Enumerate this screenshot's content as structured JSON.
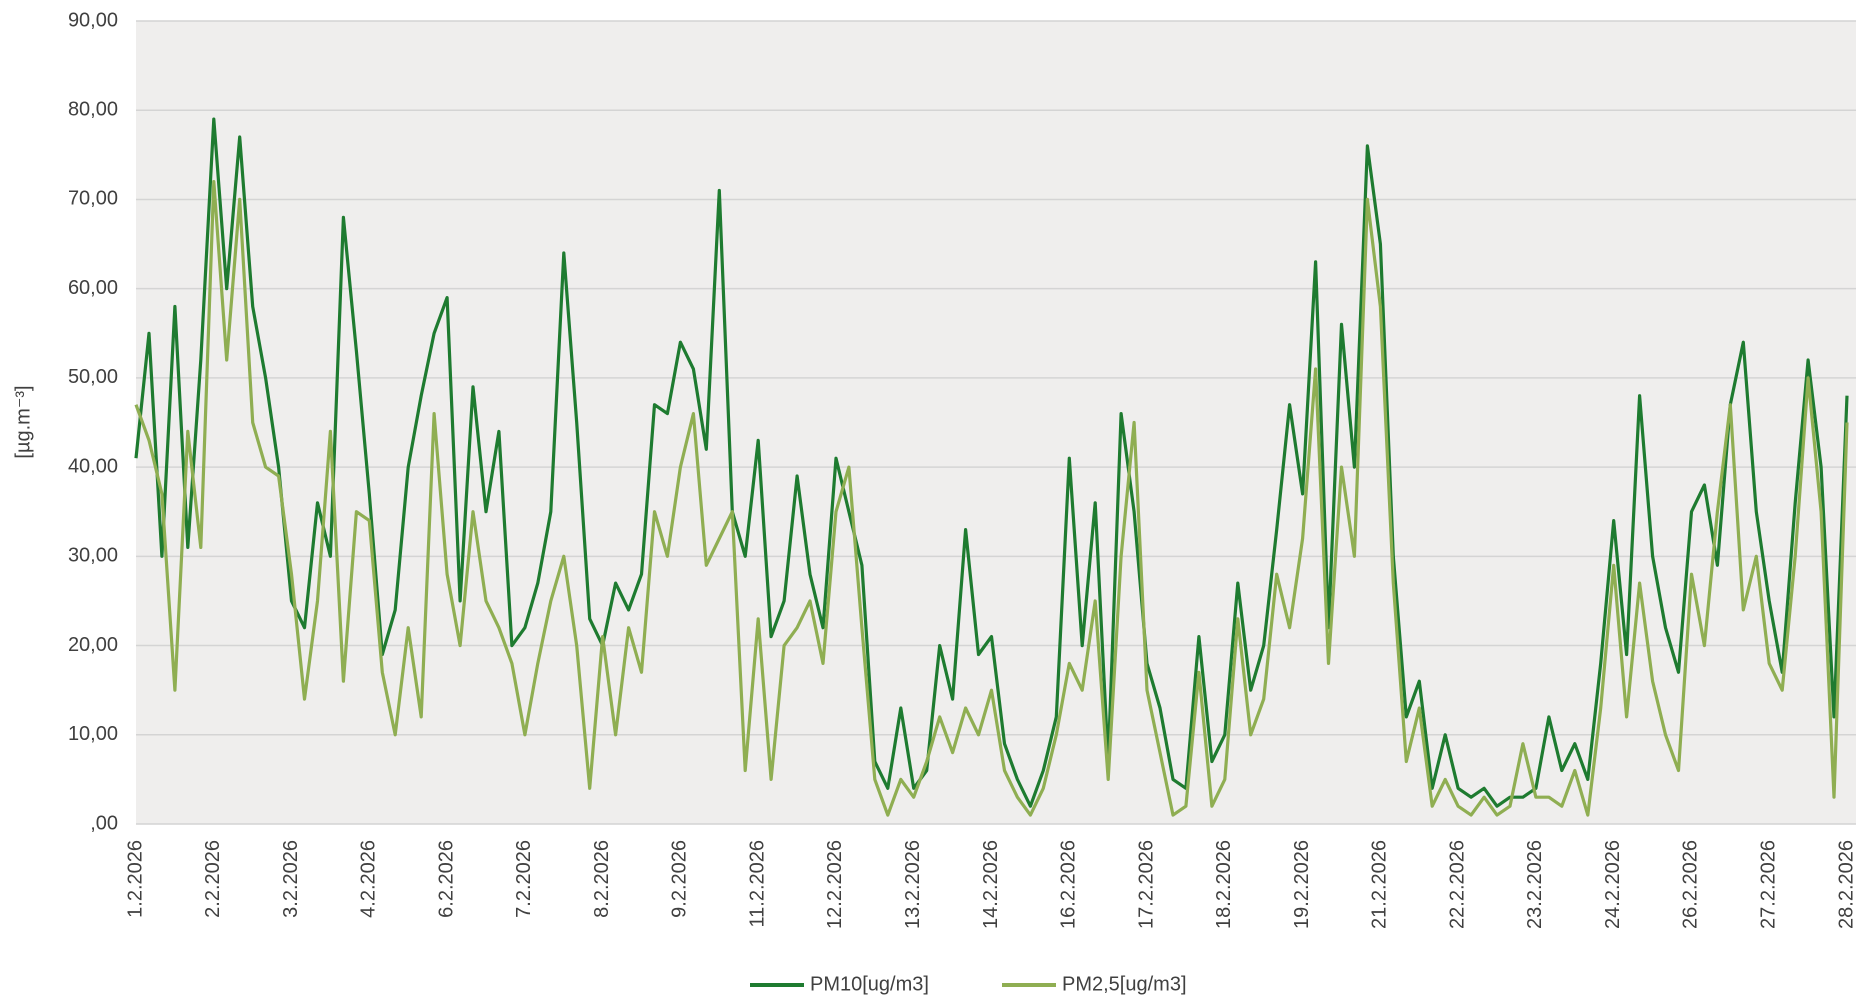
{
  "chart_data": {
    "type": "line",
    "y_label": "[µg.m⁻³]",
    "categories": [
      "1.2.2026",
      null,
      null,
      null,
      null,
      null,
      "2.2.2026",
      null,
      null,
      null,
      null,
      null,
      "3.2.2026",
      null,
      null,
      null,
      null,
      null,
      "4.2.2026",
      null,
      null,
      null,
      null,
      null,
      "6.2.2026",
      null,
      null,
      null,
      null,
      null,
      "7.2.2026",
      null,
      null,
      null,
      null,
      null,
      "8.2.2026",
      null,
      null,
      null,
      null,
      null,
      "9.2.2026",
      null,
      null,
      null,
      null,
      null,
      "11.2.2026",
      null,
      null,
      null,
      null,
      null,
      "12.2.2026",
      null,
      null,
      null,
      null,
      null,
      "13.2.2026",
      null,
      null,
      null,
      null,
      null,
      "14.2.2026",
      null,
      null,
      null,
      null,
      null,
      "16.2.2026",
      null,
      null,
      null,
      null,
      null,
      "17.2.2026",
      null,
      null,
      null,
      null,
      null,
      "18.2.2026",
      null,
      null,
      null,
      null,
      null,
      "19.2.2026",
      null,
      null,
      null,
      null,
      null,
      "21.2.2026",
      null,
      null,
      null,
      null,
      null,
      "22.2.2026",
      null,
      null,
      null,
      null,
      null,
      "23.2.2026",
      null,
      null,
      null,
      null,
      null,
      "24.2.2026",
      null,
      null,
      null,
      null,
      null,
      "26.2.2026",
      null,
      null,
      null,
      null,
      null,
      "27.2.2026",
      null,
      null,
      null,
      null,
      null,
      "28.2.2026"
    ],
    "series": [
      {
        "name": "PM10[ug/m3]",
        "color": "#1e7b30",
        "values": [
          41,
          55,
          30,
          58,
          31,
          52,
          79,
          60,
          77,
          58,
          50,
          40,
          25,
          22,
          36,
          30,
          68,
          53,
          37,
          19,
          24,
          40,
          48,
          55,
          59,
          25,
          49,
          35,
          44,
          20,
          22,
          27,
          35,
          64,
          45,
          23,
          20,
          27,
          24,
          28,
          47,
          46,
          54,
          51,
          42,
          71,
          35,
          30,
          43,
          21,
          25,
          39,
          28,
          22,
          41,
          35,
          29,
          7,
          4,
          13,
          4,
          6,
          20,
          14,
          33,
          19,
          21,
          9,
          5,
          2,
          6,
          12,
          41,
          20,
          36,
          7,
          46,
          35,
          18,
          13,
          5,
          4,
          21,
          7,
          10,
          27,
          15,
          20,
          33,
          47,
          37,
          63,
          22,
          56,
          40,
          76,
          65,
          30,
          12,
          16,
          4,
          10,
          4,
          3,
          4,
          2,
          3,
          3,
          4,
          12,
          6,
          9,
          5,
          18,
          34,
          19,
          48,
          30,
          22,
          17,
          35,
          38,
          29,
          47,
          54,
          35,
          25,
          17,
          36,
          52,
          40,
          12,
          48
        ]
      },
      {
        "name": "PM2,5[ug/m3]",
        "color": "#8fae52",
        "values": [
          47,
          43,
          37,
          15,
          44,
          31,
          72,
          52,
          70,
          45,
          40,
          39,
          28,
          14,
          25,
          44,
          16,
          35,
          34,
          17,
          10,
          22,
          12,
          46,
          28,
          20,
          35,
          25,
          22,
          18,
          10,
          18,
          25,
          30,
          20,
          4,
          21,
          10,
          22,
          17,
          35,
          30,
          40,
          46,
          29,
          32,
          35,
          6,
          23,
          5,
          20,
          22,
          25,
          18,
          35,
          40,
          22,
          5,
          1,
          5,
          3,
          7,
          12,
          8,
          13,
          10,
          15,
          6,
          3,
          1,
          4,
          10,
          18,
          15,
          25,
          5,
          30,
          45,
          15,
          8,
          1,
          2,
          17,
          2,
          5,
          23,
          10,
          14,
          28,
          22,
          32,
          51,
          18,
          40,
          30,
          70,
          58,
          27,
          7,
          13,
          2,
          5,
          2,
          1,
          3,
          1,
          2,
          9,
          3,
          3,
          2,
          6,
          1,
          13,
          29,
          12,
          27,
          16,
          10,
          6,
          28,
          20,
          35,
          47,
          24,
          30,
          18,
          15,
          30,
          50,
          35,
          3,
          45
        ]
      }
    ],
    "ylim": [
      0,
      90
    ],
    "yticks": [
      {
        "value": 0,
        "label": ",00"
      },
      {
        "value": 10,
        "label": "10,00"
      },
      {
        "value": 20,
        "label": "20,00"
      },
      {
        "value": 30,
        "label": "30,00"
      },
      {
        "value": 40,
        "label": "40,00"
      },
      {
        "value": 50,
        "label": "50,00"
      },
      {
        "value": 60,
        "label": "60,00"
      },
      {
        "value": 70,
        "label": "70,00"
      },
      {
        "value": 80,
        "label": "80,00"
      },
      {
        "value": 90,
        "label": "90,00"
      }
    ],
    "grid": true,
    "legend": "bottom"
  }
}
